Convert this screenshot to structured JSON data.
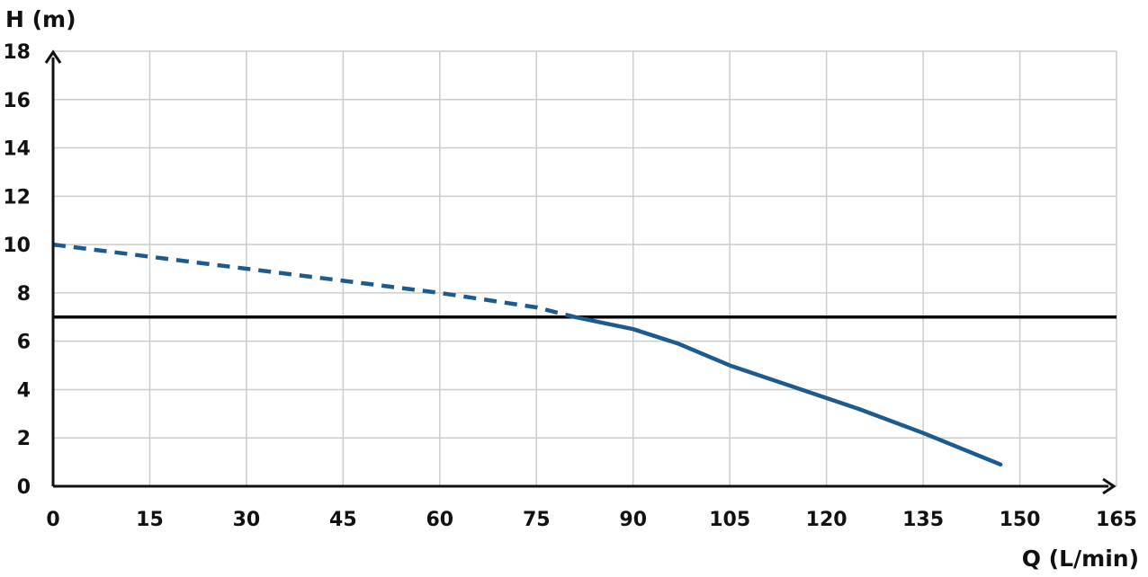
{
  "chart_data": {
    "type": "line",
    "title": "",
    "xlabel": "Q (L/min)",
    "ylabel": "H (m)",
    "xlim": [
      0,
      165
    ],
    "ylim": [
      0,
      18
    ],
    "xticks": [
      "0",
      "15",
      "30",
      "45",
      "60",
      "75",
      "90",
      "105",
      "120",
      "135",
      "150",
      "165"
    ],
    "yticks": [
      "0",
      "2",
      "4",
      "6",
      "8",
      "10",
      "12",
      "14",
      "16",
      "18"
    ],
    "grid": true,
    "legend": "none",
    "series": [
      {
        "style": "dashed",
        "color": "#1d5a8e",
        "x": [
          0,
          15,
          30,
          45,
          60,
          75,
          81
        ],
        "y": [
          10.0,
          9.5,
          9.0,
          8.5,
          8.0,
          7.4,
          7.0
        ]
      },
      {
        "style": "solid",
        "color": "#1d5a8e",
        "x": [
          81,
          90,
          97,
          105,
          115,
          125,
          135,
          147
        ],
        "y": [
          7.0,
          6.5,
          5.9,
          5.0,
          4.1,
          3.2,
          2.2,
          0.9
        ]
      }
    ],
    "reference_line": {
      "y": 7.0,
      "color": "#000000"
    }
  }
}
